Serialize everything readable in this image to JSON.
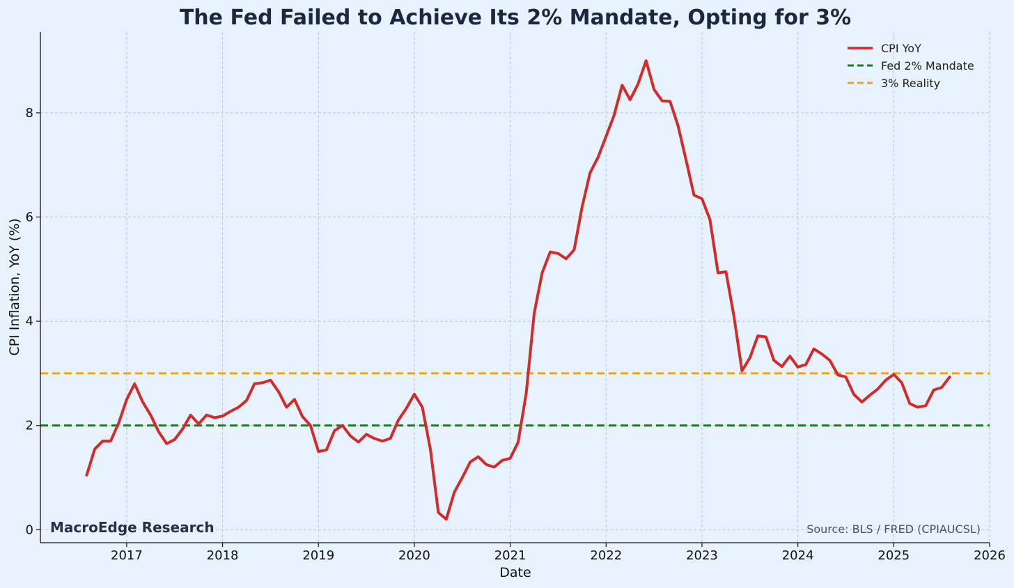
{
  "chart_data": {
    "type": "line",
    "title": "The Fed Failed to Achieve Its 2% Mandate, Opting for 3%",
    "xlabel": "Date",
    "ylabel": "CPI Inflation, YoY (%)",
    "xlim": [
      2016.1,
      2026.0
    ],
    "ylim": [
      -0.25,
      9.55
    ],
    "x_ticks": [
      2017,
      2018,
      2019,
      2020,
      2021,
      2022,
      2023,
      2024,
      2025,
      2026
    ],
    "x_tick_labels": [
      "2017",
      "2018",
      "2019",
      "2020",
      "2021",
      "2022",
      "2023",
      "2024",
      "2025",
      "2026"
    ],
    "y_ticks": [
      0,
      2,
      4,
      6,
      8
    ],
    "y_tick_labels": [
      "0",
      "2",
      "4",
      "6",
      "8"
    ],
    "grid": true,
    "legend_position": "top-right",
    "series": [
      {
        "name": "CPI YoY",
        "style": "solid",
        "color": "#d12b2b",
        "x": [
          2016.583,
          2016.667,
          2016.75,
          2016.833,
          2016.917,
          2017.0,
          2017.083,
          2017.167,
          2017.25,
          2017.333,
          2017.417,
          2017.5,
          2017.583,
          2017.667,
          2017.75,
          2017.833,
          2017.917,
          2018.0,
          2018.083,
          2018.167,
          2018.25,
          2018.333,
          2018.417,
          2018.5,
          2018.583,
          2018.667,
          2018.75,
          2018.833,
          2018.917,
          2019.0,
          2019.083,
          2019.167,
          2019.25,
          2019.333,
          2019.417,
          2019.5,
          2019.583,
          2019.667,
          2019.75,
          2019.833,
          2019.917,
          2020.0,
          2020.083,
          2020.167,
          2020.25,
          2020.333,
          2020.417,
          2020.5,
          2020.583,
          2020.667,
          2020.75,
          2020.833,
          2020.917,
          2021.0,
          2021.083,
          2021.167,
          2021.25,
          2021.333,
          2021.417,
          2021.5,
          2021.583,
          2021.667,
          2021.75,
          2021.833,
          2021.917,
          2022.0,
          2022.083,
          2022.167,
          2022.25,
          2022.333,
          2022.417,
          2022.5,
          2022.583,
          2022.667,
          2022.75,
          2022.833,
          2022.917,
          2023.0,
          2023.083,
          2023.167,
          2023.25,
          2023.333,
          2023.417,
          2023.5,
          2023.583,
          2023.667,
          2023.75,
          2023.833,
          2023.917,
          2024.0,
          2024.083,
          2024.167,
          2024.25,
          2024.333,
          2024.417,
          2024.5,
          2024.583,
          2024.667,
          2024.75,
          2024.833,
          2024.917,
          2025.0,
          2025.083,
          2025.167,
          2025.25,
          2025.333,
          2025.417,
          2025.5,
          2025.583
        ],
        "values": [
          1.05,
          1.55,
          1.7,
          1.7,
          2.05,
          2.5,
          2.8,
          2.45,
          2.2,
          1.88,
          1.65,
          1.73,
          1.93,
          2.2,
          2.03,
          2.2,
          2.15,
          2.18,
          2.27,
          2.35,
          2.48,
          2.8,
          2.82,
          2.87,
          2.65,
          2.35,
          2.5,
          2.17,
          2.0,
          1.5,
          1.53,
          1.9,
          2.0,
          1.8,
          1.68,
          1.83,
          1.75,
          1.7,
          1.75,
          2.1,
          2.33,
          2.6,
          2.35,
          1.55,
          0.33,
          0.2,
          0.72,
          1.0,
          1.3,
          1.4,
          1.25,
          1.2,
          1.33,
          1.37,
          1.68,
          2.62,
          4.15,
          4.93,
          5.33,
          5.3,
          5.2,
          5.37,
          6.2,
          6.85,
          7.15,
          7.55,
          7.95,
          8.53,
          8.25,
          8.55,
          9.0,
          8.45,
          8.23,
          8.22,
          7.75,
          7.1,
          6.42,
          6.35,
          5.95,
          4.93,
          4.95,
          4.1,
          3.05,
          3.3,
          3.72,
          3.7,
          3.25,
          3.13,
          3.33,
          3.12,
          3.17,
          3.47,
          3.37,
          3.25,
          2.97,
          2.93,
          2.6,
          2.45,
          2.58,
          2.7,
          2.87,
          2.98,
          2.82,
          2.42,
          2.35,
          2.38,
          2.68,
          2.73,
          2.93
        ]
      },
      {
        "name": "Fed 2% Mandate",
        "style": "dashed",
        "color": "#15801a",
        "value": 2
      },
      {
        "name": "3% Reality",
        "style": "dashed",
        "color": "#f0a21c",
        "value": 3
      }
    ],
    "annotations": {
      "watermark": "MacroEdge Research",
      "source": "Source: BLS / FRED (CPIAUCSL)"
    }
  }
}
